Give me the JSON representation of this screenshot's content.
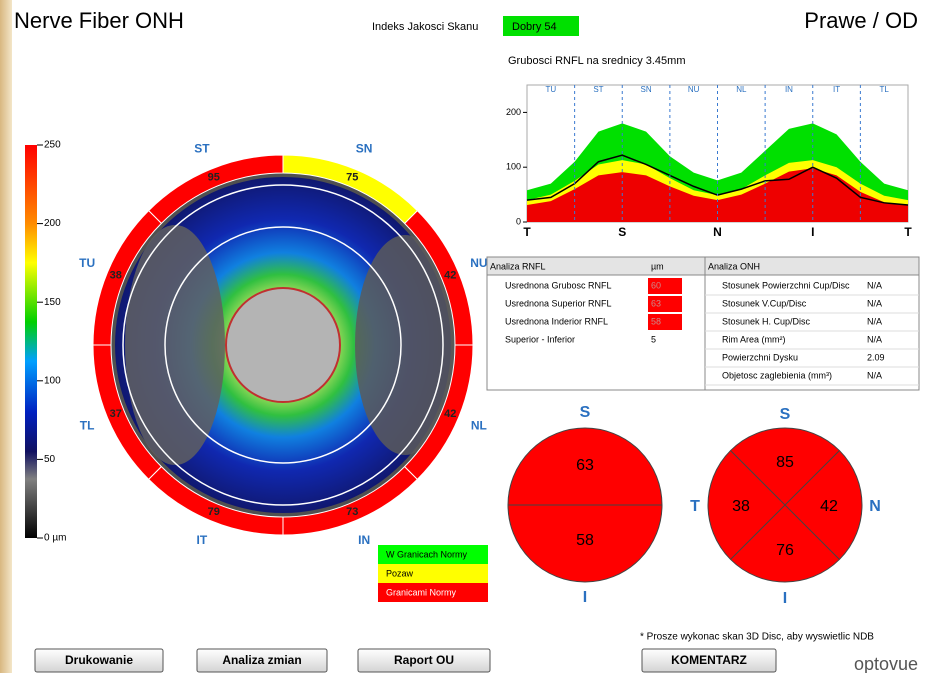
{
  "header": {
    "title": "Nerve Fiber ONH",
    "quality_label": "Indeks Jakosci Skanu",
    "quality_value": "Dobry  54",
    "eye": "Prawe / OD"
  },
  "colorbar": {
    "lim": [
      0,
      250
    ],
    "ticks": [
      {
        "value": 0,
        "label": "0 µm"
      },
      50,
      100,
      150,
      200,
      250
    ]
  },
  "thickness_map": {
    "sectors": [
      {
        "label": "NU",
        "value": 42,
        "color": "#ff0000"
      },
      {
        "label": "SN",
        "value": 75,
        "color": "#ffff00"
      },
      {
        "label": "ST",
        "value": 95,
        "color": "#ff0000"
      },
      {
        "label": "TU",
        "value": 38,
        "color": "#ff0000"
      },
      {
        "label": "TL",
        "value": 37,
        "color": "#ff0000"
      },
      {
        "label": "IT",
        "value": 79,
        "color": "#ff0000"
      },
      {
        "label": "IN",
        "value": 73,
        "color": "#ff0000"
      },
      {
        "label": "NL",
        "value": 42,
        "color": "#ff0000"
      }
    ]
  },
  "legend": [
    {
      "label": "W Granicach Normy",
      "color": "#00ff00"
    },
    {
      "label": "Pozaw",
      "color": "#ffff00"
    },
    {
      "label": "Granicami Normy",
      "color": "#ff0000"
    }
  ],
  "rnfl_graph": {
    "type": "area",
    "title": "Grubosci RNFL na srednicy 3.45mm",
    "categories": [
      "T",
      null,
      null,
      null,
      "S",
      null,
      null,
      null,
      "N",
      null,
      null,
      null,
      "I",
      null,
      null,
      null,
      "T"
    ],
    "sectors": [
      "TU",
      "ST",
      "SN",
      "NU",
      "NL",
      "IN",
      "IT",
      "TL"
    ],
    "ylim": [
      0,
      250
    ],
    "yticks": [
      0,
      100,
      200
    ],
    "series": [
      {
        "color": "#00e000",
        "values": [
          58,
          70,
          110,
          165,
          180,
          165,
          120,
          90,
          76,
          90,
          130,
          170,
          180,
          160,
          110,
          70,
          58
        ]
      },
      {
        "color": "#ffff00",
        "values": [
          40,
          50,
          75,
          105,
          113,
          105,
          80,
          58,
          49,
          60,
          85,
          108,
          113,
          100,
          70,
          48,
          40
        ]
      },
      {
        "color": "#ee0000",
        "values": [
          31,
          38,
          60,
          85,
          91,
          85,
          65,
          48,
          40,
          50,
          70,
          92,
          98,
          85,
          55,
          36,
          31
        ]
      },
      {
        "color": "#000000",
        "line": true,
        "values": [
          40,
          45,
          70,
          110,
          122,
          105,
          85,
          65,
          49,
          60,
          75,
          78,
          100,
          80,
          45,
          35,
          31
        ]
      }
    ]
  },
  "rnfl_table": {
    "header": [
      "Analiza RNFL",
      "µm"
    ],
    "rows": [
      [
        "Usrednona Grubosc RNFL",
        60
      ],
      [
        "Usrednona Superior RNFL",
        63
      ],
      [
        "Usrednona Inderior RNFL",
        58
      ],
      [
        "Superior - Inferior",
        5
      ]
    ],
    "cell_colors": [
      "#ff0000",
      "#ff0000",
      "#ff0000",
      "#ffffff"
    ]
  },
  "onh_table": {
    "header": [
      "Analiza ONH"
    ],
    "rows": [
      [
        "Stosunek Powierzchni Cup/Disc",
        "N/A"
      ],
      [
        "Stosunek V.Cup/Disc",
        "N/A"
      ],
      [
        "Stosunek H. Cup/Disc",
        "N/A"
      ],
      [
        "Rim Area (mm²)",
        "N/A"
      ],
      [
        "Powierzchni Dysku",
        2.09
      ],
      [
        "Objetosc zaglebienia (mm³)",
        "N/A"
      ]
    ]
  },
  "hemispheres": {
    "items": [
      {
        "label": "S",
        "value": 63
      },
      {
        "label": "I",
        "value": 58
      }
    ],
    "color": "#ff0000"
  },
  "quadrants": {
    "items": [
      {
        "label": "S",
        "value": 85
      },
      {
        "label": "N",
        "value": 42
      },
      {
        "label": "I",
        "value": 76
      },
      {
        "label": "T",
        "value": 38
      }
    ],
    "color": "#ff0000"
  },
  "note": "* Prosze wykonac skan 3D Disc, aby wyswietlic NDB",
  "buttons": [
    "Drukowanie",
    "Analiza zmian",
    "Raport OU",
    "KOMENTARZ"
  ],
  "logo": "optovue"
}
